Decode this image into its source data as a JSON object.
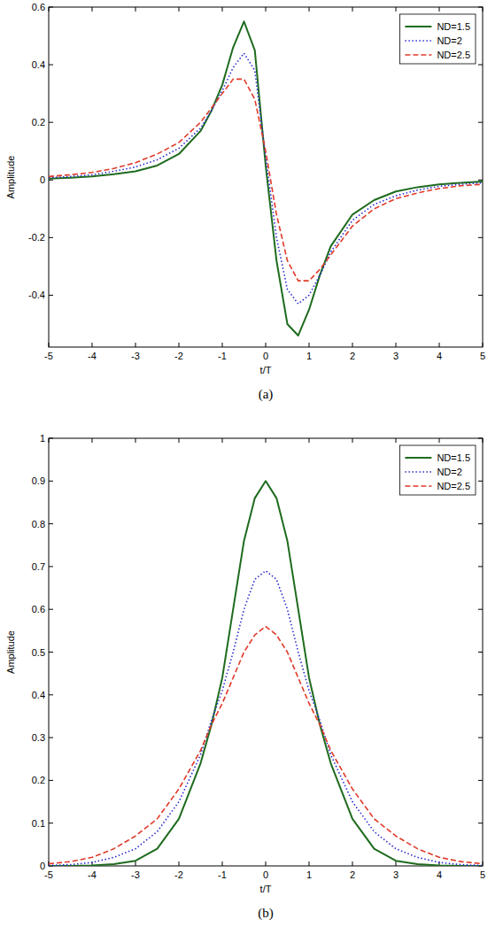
{
  "chart_data": [
    {
      "type": "line",
      "title": "(a)",
      "xlabel": "t/T",
      "ylabel": "Amplitude",
      "x": [
        -5,
        -4.5,
        -4,
        -3.5,
        -3,
        -2.5,
        -2,
        -1.5,
        -1.25,
        -1,
        -0.75,
        -0.5,
        -0.25,
        0,
        0.25,
        0.5,
        0.75,
        1,
        1.25,
        1.5,
        2,
        2.5,
        3,
        3.5,
        4,
        4.5,
        5
      ],
      "xlim": [
        -5,
        5
      ],
      "xticks": [
        -5,
        -4,
        -3,
        -2,
        -1,
        0,
        1,
        2,
        3,
        4,
        5
      ],
      "ylim": [
        -0.58,
        0.6
      ],
      "yticks": [
        -0.4,
        -0.2,
        0,
        0.2,
        0.4,
        0.6
      ],
      "grid": false,
      "legend": "upper right",
      "series": [
        {
          "name": "ND=1.5",
          "color": "#1e6b1e",
          "line_style": "solid",
          "values": [
            0.005,
            0.008,
            0.012,
            0.02,
            0.03,
            0.05,
            0.09,
            0.17,
            0.24,
            0.33,
            0.46,
            0.55,
            0.45,
            0.05,
            -0.28,
            -0.5,
            -0.54,
            -0.45,
            -0.33,
            -0.23,
            -0.12,
            -0.07,
            -0.04,
            -0.025,
            -0.015,
            -0.01,
            -0.005
          ]
        },
        {
          "name": "ND=2",
          "color": "#2a2ad0",
          "line_style": "dotted",
          "values": [
            0.008,
            0.012,
            0.018,
            0.03,
            0.045,
            0.07,
            0.11,
            0.18,
            0.24,
            0.31,
            0.39,
            0.44,
            0.38,
            0.08,
            -0.2,
            -0.38,
            -0.43,
            -0.4,
            -0.33,
            -0.25,
            -0.14,
            -0.085,
            -0.055,
            -0.035,
            -0.022,
            -0.015,
            -0.01
          ]
        },
        {
          "name": "ND=2.5",
          "color": "#e03a2a",
          "line_style": "dashed",
          "values": [
            0.012,
            0.018,
            0.026,
            0.04,
            0.06,
            0.09,
            0.13,
            0.2,
            0.25,
            0.3,
            0.35,
            0.35,
            0.28,
            0.1,
            -0.12,
            -0.28,
            -0.35,
            -0.35,
            -0.31,
            -0.26,
            -0.16,
            -0.1,
            -0.065,
            -0.045,
            -0.03,
            -0.02,
            -0.015
          ]
        }
      ]
    },
    {
      "type": "line",
      "title": "(b)",
      "xlabel": "t/T",
      "ylabel": "Amplitude",
      "x": [
        -5,
        -4.5,
        -4,
        -3.5,
        -3,
        -2.5,
        -2,
        -1.5,
        -1.25,
        -1,
        -0.75,
        -0.5,
        -0.25,
        0,
        0.25,
        0.5,
        0.75,
        1,
        1.25,
        1.5,
        2,
        2.5,
        3,
        3.5,
        4,
        4.5,
        5
      ],
      "xlim": [
        -5,
        5
      ],
      "xticks": [
        -5,
        -4,
        -3,
        -2,
        -1,
        0,
        1,
        2,
        3,
        4,
        5
      ],
      "ylim": [
        0,
        1
      ],
      "yticks": [
        0,
        0.1,
        0.2,
        0.3,
        0.4,
        0.5,
        0.6,
        0.7,
        0.8,
        0.9,
        1
      ],
      "grid": false,
      "legend": "upper right",
      "series": [
        {
          "name": "ND=1.5",
          "color": "#1e6b1e",
          "line_style": "solid",
          "values": [
            0,
            0,
            0.001,
            0.004,
            0.012,
            0.04,
            0.11,
            0.24,
            0.33,
            0.44,
            0.6,
            0.76,
            0.86,
            0.9,
            0.86,
            0.76,
            0.6,
            0.44,
            0.33,
            0.24,
            0.11,
            0.04,
            0.012,
            0.004,
            0.001,
            0,
            0
          ]
        },
        {
          "name": "ND=2",
          "color": "#2a2ad0",
          "line_style": "dotted",
          "values": [
            0.001,
            0.003,
            0.008,
            0.02,
            0.04,
            0.08,
            0.15,
            0.26,
            0.34,
            0.41,
            0.5,
            0.6,
            0.67,
            0.69,
            0.67,
            0.6,
            0.5,
            0.41,
            0.34,
            0.26,
            0.15,
            0.08,
            0.04,
            0.02,
            0.008,
            0.003,
            0.001
          ]
        },
        {
          "name": "ND=2.5",
          "color": "#e03a2a",
          "line_style": "dashed",
          "values": [
            0.005,
            0.01,
            0.02,
            0.04,
            0.07,
            0.11,
            0.18,
            0.27,
            0.33,
            0.38,
            0.44,
            0.5,
            0.54,
            0.56,
            0.54,
            0.5,
            0.44,
            0.38,
            0.33,
            0.27,
            0.18,
            0.11,
            0.07,
            0.04,
            0.02,
            0.01,
            0.005
          ]
        }
      ]
    }
  ]
}
